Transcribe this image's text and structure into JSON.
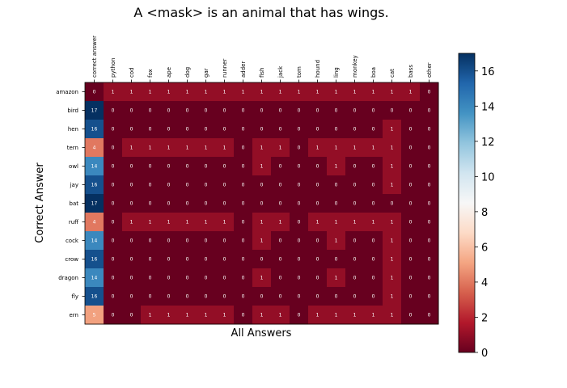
{
  "chart_data": {
    "type": "heatmap",
    "title": "A <mask> is an animal that has wings.",
    "xlabel": "All Answers",
    "ylabel": "Correct Answer",
    "x_categories": [
      "correct answer",
      "python",
      "cod",
      "fox",
      "ape",
      "dog",
      "gar",
      "runner",
      "adder",
      "fish",
      "jack",
      "tom",
      "hound",
      "ling",
      "monkey",
      "boa",
      "cat",
      "bass",
      "other"
    ],
    "y_categories": [
      "amazon",
      "bird",
      "hen",
      "tern",
      "owl",
      "jay",
      "bat",
      "ruff",
      "cock",
      "crow",
      "dragon",
      "fly",
      "ern"
    ],
    "values": [
      [
        0,
        1,
        1,
        1,
        1,
        1,
        1,
        1,
        1,
        1,
        1,
        1,
        1,
        1,
        1,
        1,
        1,
        1,
        0
      ],
      [
        17,
        0,
        0,
        0,
        0,
        0,
        0,
        0,
        0,
        0,
        0,
        0,
        0,
        0,
        0,
        0,
        0,
        0,
        0
      ],
      [
        16,
        0,
        0,
        0,
        0,
        0,
        0,
        0,
        0,
        0,
        0,
        0,
        0,
        0,
        0,
        0,
        1,
        0,
        0
      ],
      [
        4,
        0,
        1,
        1,
        1,
        1,
        1,
        1,
        0,
        1,
        1,
        0,
        1,
        1,
        1,
        1,
        1,
        0,
        0
      ],
      [
        14,
        0,
        0,
        0,
        0,
        0,
        0,
        0,
        0,
        1,
        0,
        0,
        0,
        1,
        0,
        0,
        1,
        0,
        0
      ],
      [
        16,
        0,
        0,
        0,
        0,
        0,
        0,
        0,
        0,
        0,
        0,
        0,
        0,
        0,
        0,
        0,
        1,
        0,
        0
      ],
      [
        17,
        0,
        0,
        0,
        0,
        0,
        0,
        0,
        0,
        0,
        0,
        0,
        0,
        0,
        0,
        0,
        0,
        0,
        0
      ],
      [
        4,
        0,
        1,
        1,
        1,
        1,
        1,
        1,
        0,
        1,
        1,
        0,
        1,
        1,
        1,
        1,
        1,
        0,
        0
      ],
      [
        14,
        0,
        0,
        0,
        0,
        0,
        0,
        0,
        0,
        1,
        0,
        0,
        0,
        1,
        0,
        0,
        1,
        0,
        0
      ],
      [
        16,
        0,
        0,
        0,
        0,
        0,
        0,
        0,
        0,
        0,
        0,
        0,
        0,
        0,
        0,
        0,
        1,
        0,
        0
      ],
      [
        14,
        0,
        0,
        0,
        0,
        0,
        0,
        0,
        0,
        1,
        0,
        0,
        0,
        1,
        0,
        0,
        1,
        0,
        0
      ],
      [
        16,
        0,
        0,
        0,
        0,
        0,
        0,
        0,
        0,
        0,
        0,
        0,
        0,
        0,
        0,
        0,
        1,
        0,
        0
      ],
      [
        5,
        0,
        0,
        1,
        1,
        1,
        1,
        1,
        0,
        1,
        1,
        0,
        1,
        1,
        1,
        1,
        1,
        0,
        0
      ]
    ],
    "colormap": "RdBu",
    "vmin": 0,
    "vmax": 17,
    "colorbar_ticks": [
      0,
      2,
      4,
      6,
      8,
      10,
      12,
      14,
      16
    ],
    "grid": false
  }
}
